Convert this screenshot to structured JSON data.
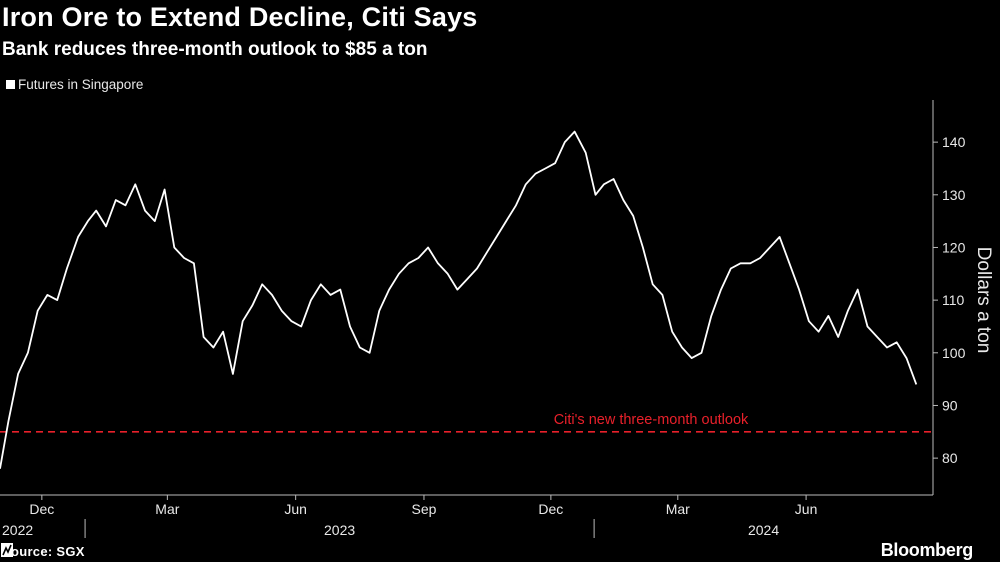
{
  "header": {
    "title": "Iron Ore to Extend Decline, Citi Says",
    "subtitle": "Bank reduces three-month outlook to $85 a ton"
  },
  "legend": {
    "label": "Futures in Singapore"
  },
  "footer": {
    "source": "Source: SGX",
    "brand": "Bloomberg"
  },
  "colors": {
    "background": "#000000",
    "series": "#ffffff",
    "reference_line": "#e8202a",
    "axis": "#bbbbbb"
  },
  "chart_data": {
    "type": "line",
    "title": "Iron Ore to Extend Decline, Citi Says",
    "subtitle": "Bank reduces three-month outlook to $85 a ton",
    "ylabel": "Dollars a ton",
    "xlabel": "",
    "ylim": [
      73,
      148
    ],
    "xlim": [
      "2022-11-01",
      "2024-08-31"
    ],
    "yticks": [
      80,
      90,
      100,
      110,
      120,
      130,
      140
    ],
    "month_ticks": [
      {
        "date": "2022-12-01",
        "label": "Dec"
      },
      {
        "date": "2023-03-01",
        "label": "Mar"
      },
      {
        "date": "2023-06-01",
        "label": "Jun"
      },
      {
        "date": "2023-09-01",
        "label": "Sep"
      },
      {
        "date": "2023-12-01",
        "label": "Dec"
      },
      {
        "date": "2024-03-01",
        "label": "Mar"
      },
      {
        "date": "2024-06-01",
        "label": "Jun"
      }
    ],
    "year_ticks": [
      {
        "date": "2022-11-01",
        "label": "2022"
      },
      {
        "date": "2023-01-01",
        "label": "2023"
      },
      {
        "date": "2024-01-01",
        "label": "2024"
      }
    ],
    "grid": false,
    "legend_position": "top-left",
    "reference_lines": [
      {
        "y": 85,
        "label": "Citi's new three-month outlook",
        "style": "dashed",
        "color": "#e8202a"
      }
    ],
    "series": [
      {
        "name": "Futures in Singapore",
        "x": [
          "2022-11-01",
          "2022-11-07",
          "2022-11-14",
          "2022-11-21",
          "2022-11-28",
          "2022-12-05",
          "2022-12-12",
          "2022-12-19",
          "2022-12-27",
          "2023-01-03",
          "2023-01-09",
          "2023-01-16",
          "2023-01-23",
          "2023-01-30",
          "2023-02-06",
          "2023-02-13",
          "2023-02-20",
          "2023-02-27",
          "2023-03-06",
          "2023-03-13",
          "2023-03-20",
          "2023-03-27",
          "2023-04-03",
          "2023-04-10",
          "2023-04-17",
          "2023-04-24",
          "2023-05-01",
          "2023-05-08",
          "2023-05-15",
          "2023-05-22",
          "2023-05-29",
          "2023-06-05",
          "2023-06-12",
          "2023-06-19",
          "2023-06-26",
          "2023-07-03",
          "2023-07-10",
          "2023-07-17",
          "2023-07-24",
          "2023-07-31",
          "2023-08-07",
          "2023-08-14",
          "2023-08-21",
          "2023-08-28",
          "2023-09-04",
          "2023-09-11",
          "2023-09-18",
          "2023-09-25",
          "2023-10-02",
          "2023-10-09",
          "2023-10-16",
          "2023-10-23",
          "2023-10-30",
          "2023-11-06",
          "2023-11-13",
          "2023-11-20",
          "2023-11-27",
          "2023-12-04",
          "2023-12-11",
          "2023-12-18",
          "2023-12-26",
          "2024-01-02",
          "2024-01-08",
          "2024-01-15",
          "2024-01-22",
          "2024-01-29",
          "2024-02-05",
          "2024-02-12",
          "2024-02-19",
          "2024-02-26",
          "2024-03-04",
          "2024-03-11",
          "2024-03-18",
          "2024-03-25",
          "2024-04-01",
          "2024-04-08",
          "2024-04-15",
          "2024-04-22",
          "2024-04-29",
          "2024-05-06",
          "2024-05-13",
          "2024-05-20",
          "2024-05-27",
          "2024-06-03",
          "2024-06-10",
          "2024-06-17",
          "2024-06-24",
          "2024-07-01",
          "2024-07-08",
          "2024-07-15",
          "2024-07-22",
          "2024-07-29",
          "2024-08-05",
          "2024-08-12",
          "2024-08-19"
        ],
        "y": [
          78,
          87,
          96,
          100,
          108,
          111,
          110,
          116,
          122,
          125,
          127,
          124,
          129,
          128,
          132,
          127,
          125,
          131,
          120,
          118,
          117,
          103,
          101,
          104,
          96,
          106,
          109,
          113,
          111,
          108,
          106,
          105,
          110,
          113,
          111,
          112,
          105,
          101,
          100,
          108,
          112,
          115,
          117,
          118,
          120,
          117,
          115,
          112,
          114,
          116,
          119,
          122,
          125,
          128,
          132,
          134,
          135,
          136,
          140,
          142,
          138,
          130,
          132,
          133,
          129,
          126,
          120,
          113,
          111,
          104,
          101,
          99,
          100,
          107,
          112,
          116,
          117,
          117,
          118,
          120,
          122,
          117,
          112,
          106,
          104,
          107,
          103,
          108,
          112,
          105,
          103,
          101,
          102,
          99,
          94
        ]
      }
    ]
  }
}
